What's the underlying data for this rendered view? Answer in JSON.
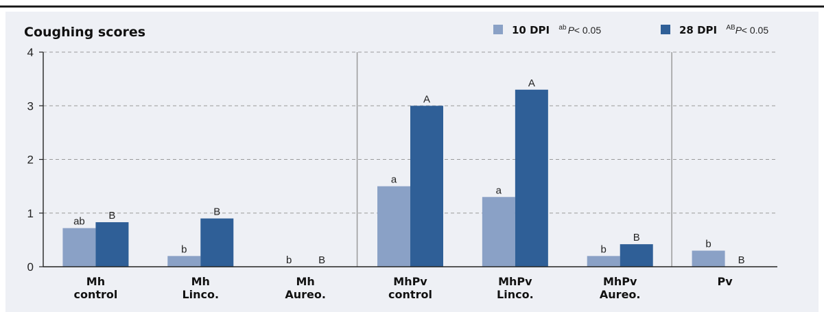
{
  "chart_data": {
    "type": "bar",
    "title": "Coughing scores",
    "categories": [
      [
        "Mh",
        "control"
      ],
      [
        "Mh",
        "Linco."
      ],
      [
        "Mh",
        "Aureo."
      ],
      [
        "MhPv",
        "control"
      ],
      [
        "MhPv",
        "Linco."
      ],
      [
        "MhPv",
        "Aureo."
      ],
      [
        "Pv"
      ]
    ],
    "series": [
      {
        "name": "10 DPI",
        "color": "#8aa1c6",
        "values": [
          0.72,
          0.2,
          0,
          1.5,
          1.3,
          0.2,
          0.3
        ],
        "labels": [
          "ab",
          "b",
          "b",
          "a",
          "a",
          "b",
          "b"
        ]
      },
      {
        "name": "28 DPI",
        "color": "#2f5f97",
        "values": [
          0.83,
          0.9,
          0,
          3.0,
          3.3,
          0.42,
          0
        ],
        "labels": [
          "B",
          "B",
          "B",
          "A",
          "A",
          "B",
          "B"
        ]
      }
    ],
    "legend": [
      {
        "sup": "ab",
        "note": "P",
        "suffix": " < 0.05"
      },
      {
        "sup": "AB",
        "note": "P",
        "suffix": " < 0.05"
      }
    ],
    "yticks": [
      0,
      1,
      2,
      3,
      4
    ],
    "ylim": [
      0,
      4
    ],
    "xlabel": "",
    "ylabel": "",
    "grid": "horizontal dashed",
    "legend_position": "top-right",
    "group_separators_after": [
      2,
      5
    ]
  }
}
